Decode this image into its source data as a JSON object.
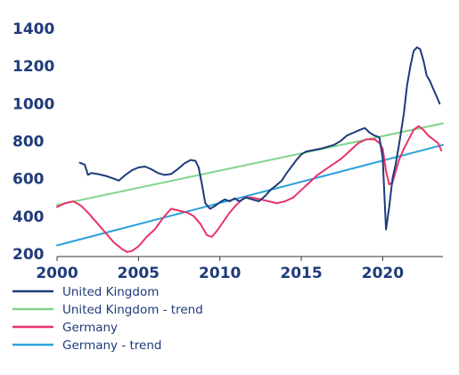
{
  "chart_data": {
    "type": "line",
    "title": "",
    "xlabel": "",
    "ylabel": "",
    "xlim": [
      2000,
      2023.7
    ],
    "ylim": [
      200,
      1400
    ],
    "xticks": [
      2000,
      2005,
      2010,
      2015,
      2020
    ],
    "yticks": [
      200,
      400,
      600,
      800,
      1000,
      1200,
      1400
    ],
    "legend_position": "bottom-left",
    "grid": false,
    "colors": {
      "axis_text": "#1f3b7a",
      "axis_line": "#333333"
    },
    "series": [
      {
        "name": "United Kingdom",
        "color": "#1f3b7a",
        "x": [
          2001.4,
          2001.7,
          2001.9,
          2002.1,
          2002.5,
          2003.0,
          2003.5,
          2003.8,
          2004.2,
          2004.6,
          2005.0,
          2005.4,
          2005.8,
          2006.2,
          2006.6,
          2007.0,
          2007.4,
          2007.8,
          2008.2,
          2008.5,
          2008.7,
          2008.9,
          2009.1,
          2009.4,
          2009.7,
          2010.0,
          2010.3,
          2010.6,
          2010.9,
          2011.2,
          2011.6,
          2012.0,
          2012.4,
          2012.8,
          2013.1,
          2013.4,
          2013.8,
          2014.1,
          2014.4,
          2014.7,
          2015.0,
          2015.3,
          2015.6,
          2015.9,
          2016.2,
          2016.6,
          2017.0,
          2017.4,
          2017.8,
          2018.2,
          2018.6,
          2018.9,
          2019.2,
          2019.5,
          2019.8,
          2020.0,
          2020.2,
          2020.4,
          2020.6,
          2020.8,
          2021.0,
          2021.3,
          2021.5,
          2021.7,
          2021.9,
          2022.1,
          2022.3,
          2022.5,
          2022.7,
          2022.9,
          2023.1,
          2023.3,
          2023.5
        ],
        "values": [
          685,
          675,
          620,
          630,
          625,
          615,
          600,
          590,
          620,
          645,
          660,
          665,
          650,
          630,
          620,
          625,
          650,
          680,
          700,
          695,
          660,
          570,
          470,
          440,
          455,
          475,
          490,
          480,
          495,
          480,
          500,
          490,
          480,
          510,
          540,
          560,
          590,
          630,
          665,
          700,
          730,
          745,
          750,
          755,
          760,
          770,
          780,
          800,
          830,
          845,
          860,
          870,
          845,
          830,
          820,
          710,
          330,
          450,
          600,
          680,
          780,
          950,
          1100,
          1200,
          1280,
          1300,
          1290,
          1230,
          1150,
          1120,
          1080,
          1040,
          1000
        ]
      },
      {
        "name": "United Kingdom - trend",
        "color": "#7fd48a",
        "x": [
          2000,
          2023.7
        ],
        "values": [
          460,
          895
        ]
      },
      {
        "name": "Germany",
        "color": "#e8336a",
        "x": [
          2000,
          2000.5,
          2001.0,
          2001.5,
          2002.0,
          2002.5,
          2003.0,
          2003.5,
          2004.0,
          2004.3,
          2004.6,
          2005.0,
          2005.5,
          2006.0,
          2006.5,
          2007.0,
          2007.5,
          2008.0,
          2008.4,
          2008.8,
          2009.2,
          2009.5,
          2009.8,
          2010.2,
          2010.6,
          2011.0,
          2011.5,
          2012.0,
          2012.5,
          2013.0,
          2013.5,
          2014.0,
          2014.5,
          2015.0,
          2015.5,
          2016.0,
          2016.5,
          2017.0,
          2017.5,
          2018.0,
          2018.5,
          2019.0,
          2019.5,
          2019.8,
          2020.0,
          2020.2,
          2020.4,
          2020.6,
          2020.8,
          2021.0,
          2021.3,
          2021.6,
          2021.9,
          2022.2,
          2022.5,
          2022.8,
          2023.1,
          2023.4,
          2023.6
        ],
        "values": [
          450,
          470,
          480,
          455,
          410,
          360,
          310,
          260,
          225,
          210,
          215,
          240,
          290,
          330,
          390,
          440,
          430,
          420,
          400,
          360,
          300,
          290,
          320,
          370,
          420,
          460,
          500,
          500,
          490,
          480,
          470,
          480,
          500,
          540,
          580,
          620,
          650,
          680,
          710,
          750,
          790,
          810,
          810,
          790,
          760,
          640,
          570,
          580,
          640,
          700,
          760,
          810,
          860,
          880,
          860,
          830,
          810,
          790,
          750
        ]
      },
      {
        "name": "Germany - trend",
        "color": "#2ba0db",
        "x": [
          2000,
          2023.7
        ],
        "values": [
          245,
          780
        ]
      }
    ]
  }
}
